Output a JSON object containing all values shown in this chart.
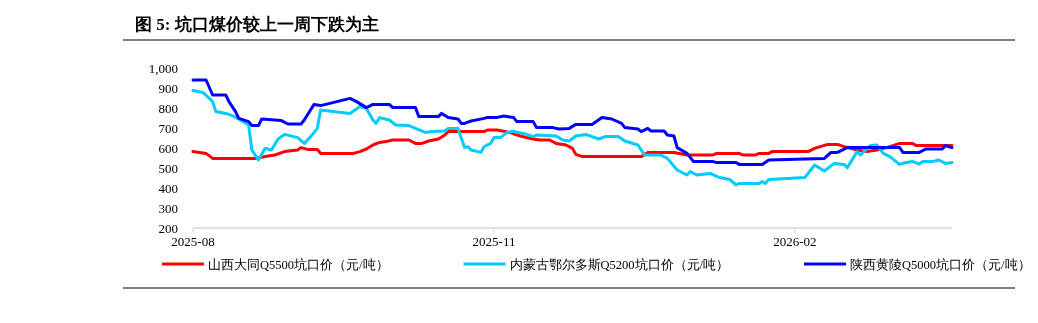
{
  "chart_data": {
    "type": "line",
    "title": "图 5:  坑口煤价较上一周下跌为主",
    "legend": "bottom",
    "xlim": [
      "2025-08-01",
      "2026-03-21"
    ],
    "xticks": [
      "2025-08",
      "2025-11",
      "2026-02"
    ],
    "ylim": [
      200,
      1000
    ],
    "yticks": [
      200,
      300,
      400,
      500,
      600,
      700,
      800,
      900,
      {
        "value": 1000,
        "label": "1,000"
      }
    ],
    "series": [
      {
        "name": "山西大同Q5500坑口价（元/吨）",
        "color": "#ff0000",
        "x": [
          "2025-08-01",
          "2025-08-05",
          "2025-08-07",
          "2025-08-20",
          "2025-08-23",
          "2025-08-26",
          "2025-08-29",
          "2025-09-02",
          "2025-09-03",
          "2025-09-05",
          "2025-09-08",
          "2025-09-09",
          "2025-09-19",
          "2025-09-21",
          "2025-09-23",
          "2025-09-25",
          "2025-09-27",
          "2025-09-29",
          "2025-10-01",
          "2025-10-06",
          "2025-10-08",
          "2025-10-10",
          "2025-10-12",
          "2025-10-15",
          "2025-10-17",
          "2025-10-18",
          "2025-10-29",
          "2025-10-30",
          "2025-11-02",
          "2025-11-06",
          "2025-11-09",
          "2025-11-12",
          "2025-11-15",
          "2025-11-18",
          "2025-11-20",
          "2025-11-23",
          "2025-11-25",
          "2025-11-26",
          "2025-11-28",
          "2025-12-16",
          "2025-12-18",
          "2025-12-26",
          "2025-12-30",
          "2026-01-07",
          "2026-01-08",
          "2026-01-15",
          "2026-01-16",
          "2026-01-20",
          "2026-01-21",
          "2026-01-24",
          "2026-01-25",
          "2026-02-05",
          "2026-02-07",
          "2026-02-11",
          "2026-02-14",
          "2026-02-17",
          "2026-02-20",
          "2026-02-23",
          "2026-02-26",
          "2026-03-02",
          "2026-03-05",
          "2026-03-09",
          "2026-03-10",
          "2026-03-21"
        ],
        "values": [
          582,
          573,
          548,
          548,
          557,
          565,
          582,
          590,
          602,
          593,
          593,
          573,
          573,
          582,
          595,
          615,
          628,
          632,
          640,
          640,
          623,
          623,
          635,
          645,
          665,
          682,
          682,
          690,
          690,
          677,
          660,
          648,
          640,
          640,
          623,
          615,
          598,
          568,
          557,
          557,
          577,
          577,
          565,
          565,
          573,
          573,
          565,
          565,
          573,
          573,
          582,
          582,
          598,
          618,
          618,
          602,
          590,
          582,
          590,
          607,
          623,
          623,
          612,
          612
        ]
      },
      {
        "name": "内蒙古鄂尔多斯Q5200坑口价（元/吨）",
        "color": "#00ccff",
        "x": [
          "2025-08-01",
          "2025-08-04",
          "2025-08-06",
          "2025-08-07",
          "2025-08-08",
          "2025-08-11",
          "2025-08-13",
          "2025-08-15",
          "2025-08-18",
          "2025-08-19",
          "2025-08-21",
          "2025-08-23",
          "2025-08-25",
          "2025-08-27",
          "2025-08-29",
          "2025-09-02",
          "2025-09-04",
          "2025-09-06",
          "2025-09-08",
          "2025-09-09",
          "2025-09-18",
          "2025-09-21",
          "2025-09-23",
          "2025-09-25",
          "2025-09-26",
          "2025-09-27",
          "2025-09-30",
          "2025-10-02",
          "2025-10-06",
          "2025-10-08",
          "2025-10-11",
          "2025-10-13",
          "2025-10-17",
          "2025-10-18",
          "2025-10-21",
          "2025-10-23",
          "2025-10-24",
          "2025-10-25",
          "2025-10-28",
          "2025-10-29",
          "2025-10-31",
          "2025-11-01",
          "2025-11-03",
          "2025-11-05",
          "2025-11-07",
          "2025-11-10",
          "2025-11-13",
          "2025-11-14",
          "2025-11-20",
          "2025-11-22",
          "2025-11-24",
          "2025-11-26",
          "2025-11-29",
          "2025-12-03",
          "2025-12-05",
          "2025-12-09",
          "2025-12-11",
          "2025-12-15",
          "2025-12-17",
          "2025-12-22",
          "2025-12-24",
          "2025-12-27",
          "2025-12-30",
          "2025-12-31",
          "2026-01-02",
          "2026-01-06",
          "2026-01-09",
          "2026-01-12",
          "2026-01-14",
          "2026-01-15",
          "2026-01-21",
          "2026-01-22",
          "2026-01-23",
          "2026-01-24",
          "2026-02-04",
          "2026-02-07",
          "2026-02-10",
          "2026-02-13",
          "2026-02-16",
          "2026-02-17",
          "2026-02-20",
          "2026-02-21",
          "2026-02-24",
          "2026-02-26",
          "2026-02-28",
          "2026-03-02",
          "2026-03-05",
          "2026-03-07",
          "2026-03-09",
          "2026-03-11",
          "2026-03-12",
          "2026-03-15",
          "2026-03-17",
          "2026-03-19",
          "2026-03-21"
        ],
        "values": [
          887,
          878,
          848,
          832,
          782,
          773,
          762,
          745,
          715,
          590,
          540,
          598,
          590,
          645,
          668,
          652,
          623,
          657,
          698,
          790,
          773,
          807,
          798,
          740,
          723,
          752,
          740,
          715,
          712,
          698,
          678,
          682,
          685,
          698,
          698,
          602,
          607,
          590,
          578,
          607,
          623,
          652,
          652,
          678,
          682,
          673,
          657,
          665,
          660,
          640,
          635,
          660,
          668,
          645,
          657,
          657,
          635,
          615,
          565,
          565,
          548,
          490,
          465,
          482,
          465,
          473,
          452,
          443,
          415,
          423,
          423,
          432,
          423,
          443,
          452,
          515,
          485,
          523,
          518,
          502,
          582,
          565,
          612,
          615,
          573,
          557,
          518,
          528,
          532,
          520,
          532,
          532,
          540,
          523,
          528
        ]
      },
      {
        "name": "陕西黄陵Q5000坑口价（元/吨）",
        "color": "#0000ff",
        "x": [
          "2025-08-01",
          "2025-08-05",
          "2025-08-07",
          "2025-08-11",
          "2025-08-12",
          "2025-08-14",
          "2025-08-15",
          "2025-08-18",
          "2025-08-19",
          "2025-08-21",
          "2025-08-22",
          "2025-08-28",
          "2025-08-30",
          "2025-09-03",
          "2025-09-04",
          "2025-09-07",
          "2025-09-09",
          "2025-09-18",
          "2025-09-20",
          "2025-09-23",
          "2025-09-25",
          "2025-09-30",
          "2025-10-01",
          "2025-10-08",
          "2025-10-09",
          "2025-10-15",
          "2025-10-16",
          "2025-10-18",
          "2025-10-21",
          "2025-10-22",
          "2025-10-23",
          "2025-10-25",
          "2025-10-29",
          "2025-10-30",
          "2025-11-02",
          "2025-11-04",
          "2025-11-07",
          "2025-11-08",
          "2025-11-13",
          "2025-11-14",
          "2025-11-19",
          "2025-11-21",
          "2025-11-24",
          "2025-11-26",
          "2025-12-01",
          "2025-12-04",
          "2025-12-07",
          "2025-12-10",
          "2025-12-11",
          "2025-12-15",
          "2025-12-16",
          "2025-12-18",
          "2025-12-19",
          "2025-12-23",
          "2025-12-24",
          "2025-12-26",
          "2025-12-27",
          "2025-12-30",
          "2026-01-01",
          "2026-01-07",
          "2026-01-08",
          "2026-01-14",
          "2026-01-15",
          "2026-01-22",
          "2026-01-24",
          "2026-02-10",
          "2026-02-12",
          "2026-02-14",
          "2026-02-17",
          "2026-03-05",
          "2026-03-06",
          "2026-03-11",
          "2026-03-13",
          "2026-03-18",
          "2026-03-19",
          "2026-03-21"
        ],
        "values": [
          940,
          940,
          865,
          865,
          832,
          782,
          748,
          732,
          712,
          712,
          745,
          737,
          720,
          720,
          740,
          818,
          812,
          848,
          832,
          802,
          818,
          818,
          803,
          803,
          757,
          757,
          773,
          752,
          745,
          723,
          723,
          735,
          748,
          753,
          753,
          760,
          752,
          732,
          732,
          702,
          702,
          695,
          698,
          718,
          718,
          752,
          745,
          723,
          702,
          695,
          682,
          698,
          685,
          685,
          665,
          660,
          602,
          573,
          532,
          532,
          527,
          527,
          518,
          518,
          540,
          548,
          578,
          578,
          602,
          602,
          578,
          578,
          595,
          595,
          612,
          602
        ]
      }
    ]
  }
}
